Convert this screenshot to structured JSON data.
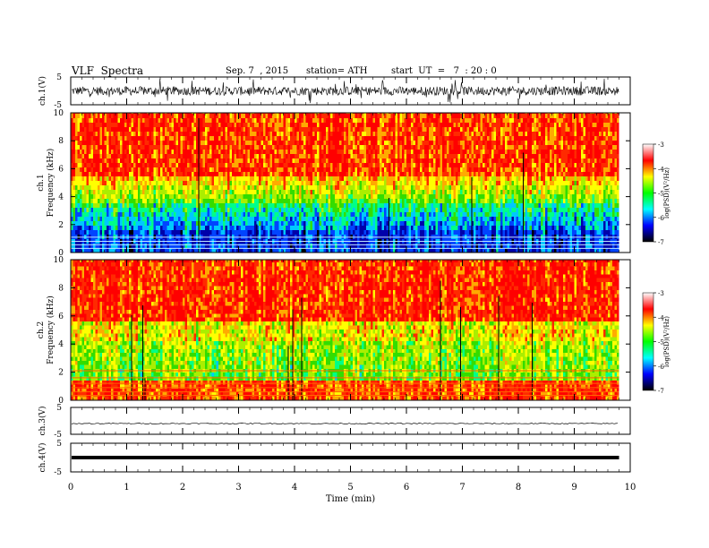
{
  "header": {
    "title": "VLF  Spectra",
    "date": "Sep. 7  , 2015",
    "station": "station= ATH",
    "start": "start  UT  =   7  : 20 : 0"
  },
  "colors": {
    "spectrogram": [
      "#000000",
      "#0000aa",
      "#0044ff",
      "#00c8ff",
      "#00ff88",
      "#33dd00",
      "#aaee00",
      "#ffff00",
      "#ffaa00",
      "#ff2a00",
      "#ff0000"
    ],
    "colorbar": [
      "#000000",
      "#0000ff",
      "#00ffff",
      "#00ff00",
      "#ffff00",
      "#ff0000",
      "#ffffff"
    ]
  },
  "chart_data": [
    {
      "type": "line",
      "name": "ch1-waveform",
      "ylabel": "ch.1(V)",
      "ylim": [
        -5,
        5
      ],
      "yticks": [
        "5",
        "-5"
      ],
      "xlim": [
        0,
        10
      ]
    },
    {
      "type": "heatmap",
      "name": "ch1-spectrogram",
      "ylabel": [
        "ch.1",
        "Frequency  (kHz)"
      ],
      "ylim": [
        0,
        10
      ],
      "yticks": [
        "10",
        "8",
        "6",
        "4",
        "2",
        "0"
      ],
      "xlim": [
        0,
        9.8
      ],
      "colorbar": {
        "label": "log(PSD)(V²/Hz)",
        "range": [
          -7,
          -3
        ],
        "ticks": [
          "-3",
          "-4",
          "-5",
          "-6",
          "-7"
        ]
      }
    },
    {
      "type": "heatmap",
      "name": "ch2-spectrogram",
      "ylabel": [
        "ch.2",
        "Frequency  (kHz)"
      ],
      "ylim": [
        0,
        10
      ],
      "yticks": [
        "10",
        "8",
        "6",
        "4",
        "2",
        "0"
      ],
      "xlim": [
        0,
        9.8
      ],
      "colorbar": {
        "label": "log(PSD)(V²/Hz)",
        "range": [
          -7,
          -3
        ],
        "ticks": [
          "-3",
          "-4",
          "-5",
          "-6",
          "-7"
        ]
      }
    },
    {
      "type": "line",
      "name": "ch3-waveform",
      "ylabel": "ch.3(V)",
      "ylim": [
        -5,
        5
      ],
      "yticks": [
        "5",
        "-5"
      ],
      "level": -1
    },
    {
      "type": "line",
      "name": "ch4-waveform",
      "ylabel": "ch.4(V)",
      "ylim": [
        -5,
        5
      ],
      "yticks": [
        "5",
        "-5"
      ],
      "level": 0
    }
  ],
  "xaxis": {
    "label": "Time  (min)",
    "ticks": [
      "0",
      "1",
      "2",
      "3",
      "4",
      "5",
      "6",
      "7",
      "8",
      "9",
      "10"
    ],
    "range": [
      0,
      10
    ]
  }
}
